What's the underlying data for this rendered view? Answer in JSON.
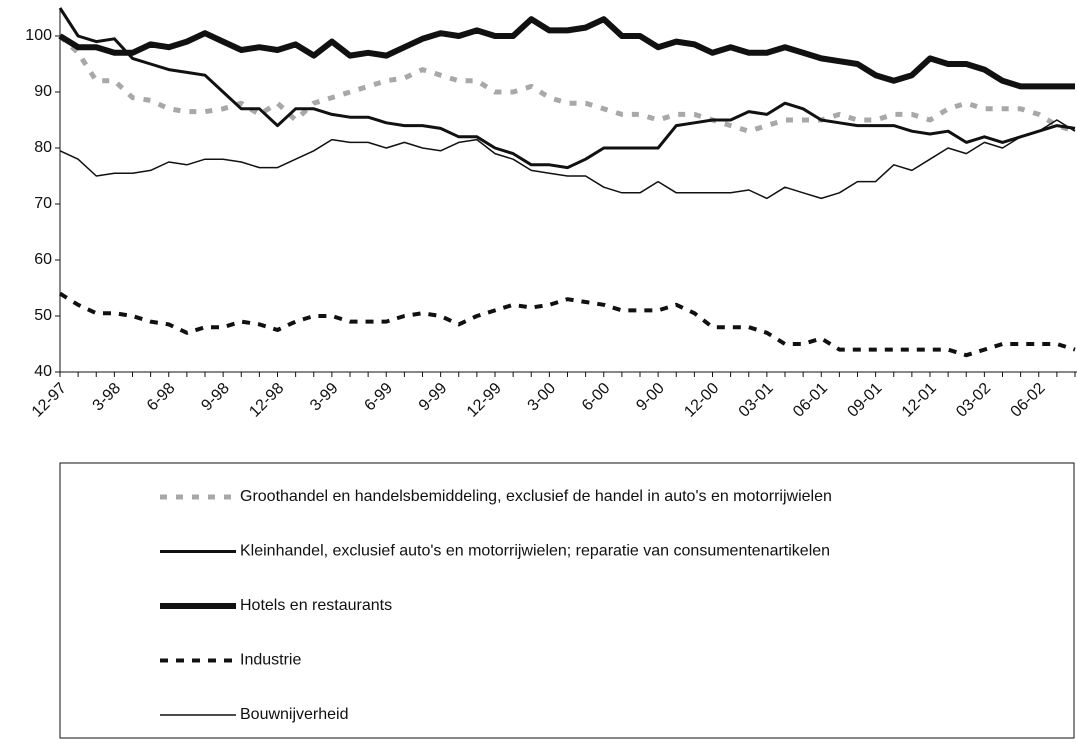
{
  "chart_data": {
    "type": "line",
    "categories": [
      "12-97",
      null,
      null,
      "3-98",
      null,
      null,
      "6-98",
      null,
      null,
      "9-98",
      null,
      null,
      "12-98",
      null,
      null,
      "3-99",
      null,
      null,
      "6-99",
      null,
      null,
      "9-99",
      null,
      null,
      "12-99",
      null,
      null,
      "3-00",
      null,
      null,
      "6-00",
      null,
      null,
      "9-00",
      null,
      null,
      "12-00",
      null,
      null,
      "03-01",
      null,
      null,
      "06-01",
      null,
      null,
      "09-01",
      null,
      null,
      "12-01",
      null,
      null,
      "03-02",
      null,
      null,
      "06-02",
      null,
      null
    ],
    "ylim": [
      40,
      105
    ],
    "yticks": [
      40,
      50,
      60,
      70,
      80,
      90,
      100
    ],
    "series": [
      {
        "name": "Groothandel en handelsbemiddeling, exclusief de handel in auto's en motorrijwielen",
        "color": "#a8a8a8",
        "width": 5,
        "dash": "7 9",
        "values": [
          100,
          97,
          92,
          92,
          89,
          88.5,
          87,
          86.5,
          86.5,
          87,
          88,
          86,
          88,
          85,
          88,
          89,
          90,
          91,
          92,
          92.5,
          94,
          93,
          92,
          92,
          90,
          90,
          91,
          89,
          88,
          88,
          87,
          86,
          86,
          85,
          86,
          86,
          85,
          84,
          83,
          84,
          85,
          85,
          85,
          86,
          85,
          85,
          86,
          86,
          85,
          87,
          88,
          87,
          87,
          87,
          86,
          84,
          83
        ]
      },
      {
        "name": "Kleinhandel, exclusief auto's en motorrijwielen; reparatie van consumentenartikelen",
        "color": "#111111",
        "width": 3,
        "dash": "none",
        "values": [
          105,
          100,
          99,
          99.5,
          96,
          95,
          94,
          93.5,
          93,
          90,
          87,
          87,
          84,
          87,
          87,
          86,
          85.5,
          85.5,
          84.5,
          84,
          84,
          83.5,
          82,
          82,
          80,
          79,
          77,
          77,
          76.5,
          78,
          80,
          80,
          80,
          80,
          84,
          84.5,
          85,
          85,
          86.5,
          86,
          88,
          87,
          85,
          84.5,
          84,
          84,
          84,
          83,
          82.5,
          83,
          81,
          82,
          81,
          82,
          83,
          84,
          83.5
        ]
      },
      {
        "name": "Hotels en restaurants",
        "color": "#111111",
        "width": 6,
        "dash": "none",
        "values": [
          100,
          98,
          98,
          97,
          97,
          98.5,
          98,
          99,
          100.5,
          99,
          97.5,
          98,
          97.5,
          98.5,
          96.5,
          99,
          96.5,
          97,
          96.5,
          98,
          99.5,
          100.5,
          100,
          101,
          100,
          100,
          103,
          101,
          101,
          101.5,
          103,
          100,
          100,
          98,
          99,
          98.5,
          97,
          98,
          97,
          97,
          98,
          97,
          96,
          95.5,
          95,
          93,
          92,
          93,
          96,
          95,
          95,
          94,
          92,
          91,
          91,
          91,
          91
        ]
      },
      {
        "name": "Industrie",
        "color": "#111111",
        "width": 4,
        "dash": "8 8",
        "values": [
          54,
          52,
          50.5,
          50.5,
          50,
          49,
          48.5,
          47,
          48,
          48,
          49,
          48.5,
          47.5,
          49,
          50,
          50,
          49,
          49,
          49,
          50,
          50.5,
          50,
          48.5,
          50,
          51,
          52,
          51.5,
          52,
          53,
          52.5,
          52,
          51,
          51,
          51,
          52,
          50.5,
          48,
          48,
          48,
          47,
          45,
          45,
          46,
          44,
          44,
          44,
          44,
          44,
          44,
          44,
          43,
          44,
          45,
          45,
          45,
          45,
          44
        ]
      },
      {
        "name": "Bouwnijverheid",
        "color": "#111111",
        "width": 1.5,
        "dash": "none",
        "values": [
          79.5,
          78,
          75,
          75.5,
          75.5,
          76,
          77.5,
          77,
          78,
          78,
          77.5,
          76.5,
          76.5,
          78,
          79.5,
          81.5,
          81,
          81,
          80,
          81,
          80,
          79.5,
          81,
          81.5,
          79,
          78,
          76,
          75.5,
          75,
          75,
          73,
          72,
          72,
          74,
          72,
          72,
          72,
          72,
          72.5,
          71,
          73,
          72,
          71,
          72,
          74,
          74,
          77,
          76,
          78,
          80,
          79,
          81,
          80,
          82,
          83,
          85,
          83
        ]
      }
    ]
  }
}
